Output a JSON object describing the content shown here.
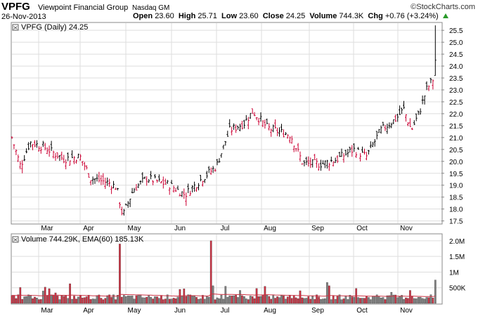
{
  "header": {
    "symbol": "VPFG",
    "company": "Viewpoint Financial Group",
    "exchange": "Nasdaq GM",
    "date": "26-Nov-2013",
    "open_label": "Open",
    "open": "23.60",
    "high_label": "High",
    "high": "25.71",
    "low_label": "Low",
    "low": "23.60",
    "close_label": "Close",
    "close": "24.25",
    "volume_label": "Volume",
    "volume": "744.3K",
    "chg_label": "Chg",
    "chg": "+0.76 (+3.24%)",
    "brand": "©StockCharts.com",
    "up_color": "#2a9a2a"
  },
  "price_panel": {
    "label": "VPFG (Daily) 24.25"
  },
  "volume_panel": {
    "label": "Volume 744.29K, EMA(60) 185.13K"
  },
  "colors": {
    "up": "#000000",
    "down": "#cc0033",
    "volume_down": "#cc3344",
    "volume_up": "#808080",
    "ema": "#cc3344",
    "grid": "#dddddd"
  },
  "chart_data": {
    "type": "line",
    "title": "VPFG (Daily) 24.25",
    "months": [
      "Mar",
      "Apr",
      "May",
      "Jun",
      "Jul",
      "Aug",
      "Sep",
      "Oct",
      "Nov"
    ],
    "y_ticks": [
      17.5,
      18.0,
      18.5,
      19.0,
      19.5,
      20.0,
      20.5,
      21.0,
      21.5,
      22.0,
      22.5,
      23.0,
      23.5,
      24.0,
      24.5,
      25.0,
      25.5
    ],
    "ylim": [
      17.4,
      25.8
    ],
    "volume_ticks": [
      "500K",
      "1M",
      "1.5M",
      "2.0M"
    ],
    "volume_tick_values": [
      500000,
      1000000,
      1500000,
      2000000
    ],
    "volume_ylim": [
      0,
      2200000
    ],
    "grid": true,
    "keypoints": [
      {
        "month": "Feb",
        "day": 1,
        "close": 21.0
      },
      {
        "month": "Feb",
        "day": 10,
        "close": 19.8
      },
      {
        "month": "Feb",
        "day": 20,
        "close": 20.8
      },
      {
        "month": "Mar",
        "day": 5,
        "close": 20.6
      },
      {
        "month": "Mar",
        "day": 20,
        "close": 20.1
      },
      {
        "month": "Apr",
        "day": 1,
        "close": 20.2
      },
      {
        "month": "Apr",
        "day": 8,
        "close": 19.3
      },
      {
        "month": "Apr",
        "day": 20,
        "close": 19.1
      },
      {
        "month": "Apr",
        "day": 25,
        "close": 18.9
      },
      {
        "month": "Apr",
        "day": 29,
        "close": 17.7
      },
      {
        "month": "May",
        "day": 6,
        "close": 18.8
      },
      {
        "month": "May",
        "day": 15,
        "close": 19.3
      },
      {
        "month": "May",
        "day": 31,
        "close": 19.0
      },
      {
        "month": "Jun",
        "day": 10,
        "close": 18.6
      },
      {
        "month": "Jun",
        "day": 20,
        "close": 19.2
      },
      {
        "month": "Jul",
        "day": 1,
        "close": 19.8
      },
      {
        "month": "Jul",
        "day": 10,
        "close": 21.3
      },
      {
        "month": "Jul",
        "day": 20,
        "close": 21.6
      },
      {
        "month": "Jul",
        "day": 26,
        "close": 22.1
      },
      {
        "month": "Aug",
        "day": 5,
        "close": 21.4
      },
      {
        "month": "Aug",
        "day": 20,
        "close": 21.1
      },
      {
        "month": "Aug",
        "day": 28,
        "close": 19.9
      },
      {
        "month": "Sep",
        "day": 10,
        "close": 19.9
      },
      {
        "month": "Sep",
        "day": 20,
        "close": 20.1
      },
      {
        "month": "Oct",
        "day": 1,
        "close": 20.5
      },
      {
        "month": "Oct",
        "day": 10,
        "close": 20.2
      },
      {
        "month": "Oct",
        "day": 20,
        "close": 21.3
      },
      {
        "month": "Oct",
        "day": 31,
        "close": 21.8
      },
      {
        "month": "Nov",
        "day": 5,
        "close": 22.2
      },
      {
        "month": "Nov",
        "day": 10,
        "close": 21.3
      },
      {
        "month": "Nov",
        "day": 15,
        "close": 22.0
      },
      {
        "month": "Nov",
        "day": 20,
        "close": 23.0
      },
      {
        "month": "Nov",
        "day": 25,
        "close": 23.5
      },
      {
        "month": "Nov",
        "day": 26,
        "close": 24.25
      }
    ],
    "volume_spikes": [
      {
        "month": "Apr",
        "day": 27,
        "value": 1900000
      },
      {
        "month": "Jun",
        "day": 28,
        "value": 2000000
      },
      {
        "month": "Nov",
        "day": 26,
        "value": 744290
      }
    ],
    "last_high": 25.71
  }
}
